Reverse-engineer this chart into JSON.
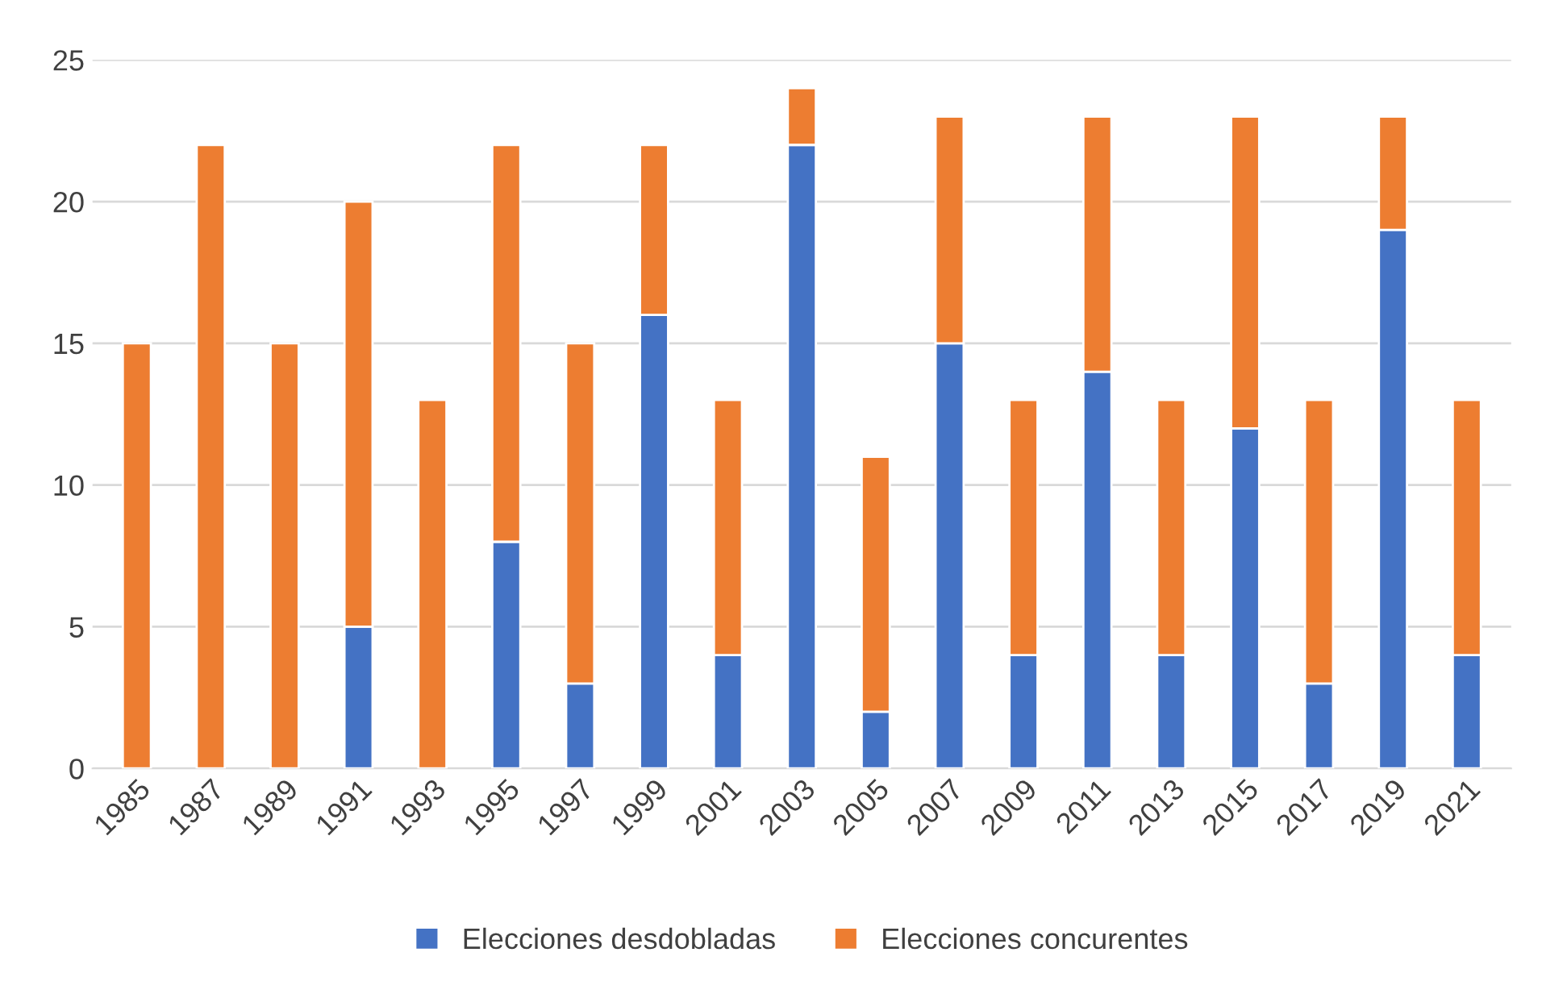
{
  "chart_data": {
    "type": "bar",
    "stacked": true,
    "categories": [
      "1985",
      "1987",
      "1989",
      "1991",
      "1993",
      "1995",
      "1997",
      "1999",
      "2001",
      "2003",
      "2005",
      "2007",
      "2009",
      "2011",
      "2013",
      "2015",
      "2017",
      "2019",
      "2021"
    ],
    "series": [
      {
        "name": "Elecciones desdobladas",
        "color": "#4472c4",
        "values": [
          0,
          0,
          0,
          5,
          0,
          8,
          3,
          16,
          4,
          22,
          2,
          15,
          4,
          14,
          4,
          12,
          3,
          19,
          4
        ]
      },
      {
        "name": "Elecciones concurentes",
        "color": "#ed7d31",
        "values": [
          15,
          22,
          15,
          15,
          13,
          14,
          12,
          6,
          9,
          2,
          9,
          8,
          9,
          9,
          9,
          11,
          10,
          4,
          9
        ]
      }
    ],
    "ylim": [
      0,
      25
    ],
    "yticks": [
      0,
      5,
      10,
      15,
      20,
      25
    ],
    "grid": "y",
    "legend": "bottom"
  }
}
